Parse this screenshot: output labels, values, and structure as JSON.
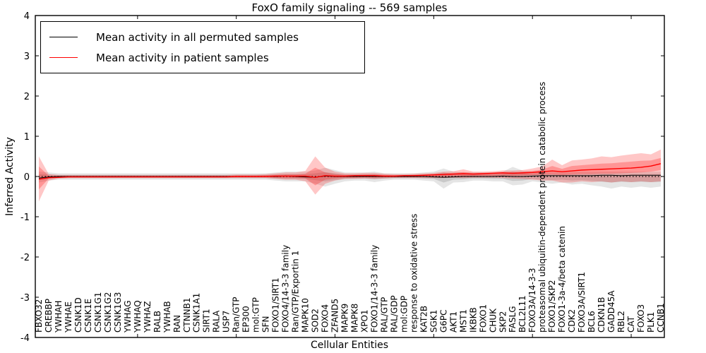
{
  "figure": {
    "background": "#ffffff",
    "spine_color": "#000000",
    "zero_line": {
      "style": "dashed",
      "color": "#000000",
      "value": 0
    }
  },
  "chart_data": {
    "type": "line",
    "title": "FoxO family signaling -- 569 samples",
    "xlabel": "Cellular Entities",
    "ylabel": "Inferred Activity",
    "ylim": [
      -4,
      4
    ],
    "yticks": [
      -4,
      -3,
      -2,
      -1,
      0,
      1,
      2,
      3,
      4
    ],
    "xtick_every": 10,
    "grid": false,
    "legend_position": "upper left",
    "categories": [
      "FBXO32",
      "CREBBP",
      "YWHAH",
      "YWHAE",
      "CSNK1D",
      "CSNK1E",
      "CSNK1G1",
      "CSNK1G2",
      "CSNK1G3",
      "YWHAG",
      "YWHAQ",
      "YWHAZ",
      "RALB",
      "YWHAB",
      "RAN",
      "CTNNB1",
      "CSNK1A1",
      "SIRT1",
      "RALA",
      "USP7",
      "Ran/GTP",
      "EP300",
      "mol:GTP",
      "SFN",
      "FOXO1/SIRT1",
      "FOXO4/14-3-3 family",
      "Ran/GTP/Exportin 1",
      "MAPK10",
      "SOD2",
      "FOXO4",
      "ZFAND5",
      "MAPK9",
      "MAPK8",
      "XPO1",
      "FOXO1/14-3-3 family",
      "RAL/GTP",
      "RAL/GDP",
      "mol:GDP",
      "response to oxidative stress",
      "KAT2B",
      "SGK1",
      "G6PC",
      "AKT1",
      "MST1",
      "IKBKB",
      "FOXO1",
      "CHUK",
      "SKP2",
      "FASLG",
      "BCL2L11",
      "FOXO3A/14-3-3",
      "proteasomal ubiquitin-dependent protein catabolic process",
      "FOXO1/SKP2",
      "FOXO1-3a-4/beta catenin",
      "CDK2",
      "FOXO3A/SIRT1",
      "BCL6",
      "CDKN1B",
      "GADD45A",
      "RBL2",
      "CAT",
      "FOXO3",
      "PLK1",
      "CCNB1"
    ],
    "series": [
      {
        "name": "Mean activity in all permuted samples",
        "color": "#000000",
        "values": [
          -0.04,
          -0.01,
          0,
          0,
          0,
          0,
          0,
          0,
          0,
          0,
          0,
          0,
          0,
          0,
          0,
          0,
          0,
          0,
          0,
          0,
          0,
          0,
          0,
          0,
          0,
          0.01,
          0,
          -0.01,
          -0.02,
          0.01,
          0,
          0,
          0,
          0,
          0,
          0,
          0,
          0,
          0,
          0,
          -0.01,
          -0.02,
          -0.01,
          0,
          0,
          0,
          0,
          0.01,
          0,
          0,
          0.01,
          0.02,
          0.02,
          0.02,
          0.02,
          0.02,
          0.02,
          0.03,
          0.03,
          0.02,
          0.03,
          0.03,
          0.03,
          0.03
        ]
      },
      {
        "name": "Mean activity in patient samples",
        "color": "#ff0000",
        "values": [
          -0.07,
          -0.03,
          -0.02,
          -0.01,
          -0.01,
          -0.01,
          -0.01,
          -0.01,
          -0.01,
          -0.01,
          -0.01,
          -0.01,
          -0.01,
          -0.01,
          -0.01,
          -0.01,
          -0.01,
          -0.01,
          -0.01,
          -0.01,
          0,
          0,
          0,
          0,
          0.01,
          0.01,
          0.01,
          0.01,
          -0.02,
          0.02,
          0.01,
          0.01,
          0.02,
          0.02,
          0.02,
          0.01,
          0.01,
          0.02,
          0.02,
          0.03,
          0.04,
          0.05,
          0.06,
          0.07,
          0.06,
          0.07,
          0.08,
          0.09,
          0.08,
          0.09,
          0.1,
          0.12,
          0.14,
          0.12,
          0.14,
          0.16,
          0.17,
          0.18,
          0.19,
          0.2,
          0.21,
          0.23,
          0.26,
          0.32
        ]
      }
    ],
    "bands": [
      {
        "name": "permuted-range-outer",
        "color": "#000000",
        "opacity": 0.1,
        "upper": [
          0.12,
          0.1,
          0.08,
          0.08,
          0.08,
          0.08,
          0.08,
          0.08,
          0.08,
          0.08,
          0.08,
          0.08,
          0.08,
          0.08,
          0.08,
          0.08,
          0.08,
          0.08,
          0.08,
          0.08,
          0.08,
          0.08,
          0.08,
          0.08,
          0.1,
          0.12,
          0.12,
          0.12,
          0.15,
          0.22,
          0.16,
          0.1,
          0.1,
          0.1,
          0.12,
          0.08,
          0.08,
          0.08,
          0.08,
          0.1,
          0.12,
          0.2,
          0.12,
          0.1,
          0.1,
          0.1,
          0.1,
          0.12,
          0.24,
          0.15,
          0.12,
          0.15,
          0.12,
          0.12,
          0.12,
          0.12,
          0.12,
          0.12,
          0.12,
          0.12,
          0.12,
          0.12,
          0.12,
          0.12
        ],
        "lower": [
          -0.15,
          -0.1,
          -0.08,
          -0.08,
          -0.08,
          -0.08,
          -0.08,
          -0.08,
          -0.08,
          -0.08,
          -0.08,
          -0.08,
          -0.08,
          -0.08,
          -0.08,
          -0.08,
          -0.08,
          -0.08,
          -0.08,
          -0.08,
          -0.08,
          -0.08,
          -0.08,
          -0.08,
          -0.1,
          -0.12,
          -0.12,
          -0.12,
          -0.18,
          -0.25,
          -0.18,
          -0.12,
          -0.1,
          -0.1,
          -0.14,
          -0.1,
          -0.08,
          -0.08,
          -0.08,
          -0.1,
          -0.12,
          -0.3,
          -0.15,
          -0.14,
          -0.1,
          -0.1,
          -0.12,
          -0.12,
          -0.22,
          -0.2,
          -0.12,
          -0.15,
          -0.18,
          -0.15,
          -0.2,
          -0.18,
          -0.22,
          -0.25,
          -0.3,
          -0.25,
          -0.28,
          -0.25,
          -0.28,
          -0.25
        ]
      },
      {
        "name": "permuted-range-inner",
        "color": "#000000",
        "opacity": 0.12,
        "upper": [
          0.06,
          0.05,
          0.04,
          0.04,
          0.04,
          0.04,
          0.04,
          0.04,
          0.04,
          0.04,
          0.04,
          0.04,
          0.04,
          0.04,
          0.04,
          0.04,
          0.04,
          0.04,
          0.04,
          0.04,
          0.04,
          0.04,
          0.04,
          0.04,
          0.05,
          0.06,
          0.06,
          0.06,
          0.08,
          0.11,
          0.08,
          0.05,
          0.05,
          0.05,
          0.06,
          0.04,
          0.04,
          0.04,
          0.04,
          0.05,
          0.06,
          0.1,
          0.06,
          0.05,
          0.05,
          0.05,
          0.05,
          0.06,
          0.12,
          0.08,
          0.06,
          0.08,
          0.06,
          0.06,
          0.06,
          0.06,
          0.06,
          0.06,
          0.06,
          0.06,
          0.06,
          0.06,
          0.06,
          0.06
        ],
        "lower": [
          -0.08,
          -0.05,
          -0.04,
          -0.04,
          -0.04,
          -0.04,
          -0.04,
          -0.04,
          -0.04,
          -0.04,
          -0.04,
          -0.04,
          -0.04,
          -0.04,
          -0.04,
          -0.04,
          -0.04,
          -0.04,
          -0.04,
          -0.04,
          -0.04,
          -0.04,
          -0.04,
          -0.04,
          -0.05,
          -0.06,
          -0.06,
          -0.06,
          -0.09,
          -0.12,
          -0.09,
          -0.06,
          -0.05,
          -0.05,
          -0.07,
          -0.05,
          -0.04,
          -0.04,
          -0.04,
          -0.05,
          -0.06,
          -0.15,
          -0.08,
          -0.07,
          -0.05,
          -0.05,
          -0.06,
          -0.06,
          -0.11,
          -0.1,
          -0.06,
          -0.08,
          -0.09,
          -0.08,
          -0.1,
          -0.09,
          -0.11,
          -0.13,
          -0.15,
          -0.13,
          -0.14,
          -0.13,
          -0.14,
          -0.13
        ]
      },
      {
        "name": "patient-range-outer",
        "color": "#ff0000",
        "opacity": 0.22,
        "upper": [
          0.5,
          0.06,
          0.04,
          0.04,
          0.04,
          0.04,
          0.04,
          0.04,
          0.04,
          0.04,
          0.04,
          0.04,
          0.04,
          0.04,
          0.04,
          0.04,
          0.04,
          0.04,
          0.04,
          0.04,
          0.05,
          0.05,
          0.05,
          0.06,
          0.08,
          0.1,
          0.1,
          0.14,
          0.5,
          0.22,
          0.12,
          0.08,
          0.08,
          0.09,
          0.09,
          0.07,
          0.06,
          0.06,
          0.07,
          0.08,
          0.09,
          0.12,
          0.13,
          0.18,
          0.12,
          0.12,
          0.13,
          0.15,
          0.15,
          0.16,
          0.2,
          0.25,
          0.42,
          0.28,
          0.4,
          0.42,
          0.45,
          0.5,
          0.48,
          0.52,
          0.55,
          0.58,
          0.55,
          0.67
        ],
        "lower": [
          -0.62,
          -0.1,
          -0.05,
          -0.04,
          -0.04,
          -0.04,
          -0.04,
          -0.04,
          -0.04,
          -0.04,
          -0.04,
          -0.04,
          -0.04,
          -0.04,
          -0.04,
          -0.04,
          -0.04,
          -0.04,
          -0.04,
          -0.04,
          -0.04,
          -0.04,
          -0.04,
          -0.04,
          -0.06,
          -0.08,
          -0.08,
          -0.12,
          -0.45,
          -0.18,
          -0.1,
          -0.06,
          -0.06,
          -0.05,
          -0.06,
          -0.05,
          -0.04,
          -0.04,
          -0.04,
          -0.04,
          -0.04,
          -0.04,
          -0.03,
          -0.04,
          -0.03,
          -0.03,
          -0.03,
          -0.04,
          -0.05,
          -0.06,
          -0.08,
          -0.1,
          -0.1,
          -0.15,
          -0.15,
          -0.12,
          -0.14,
          -0.12,
          -0.15,
          -0.12,
          -0.14,
          -0.12,
          -0.14,
          -0.12
        ]
      },
      {
        "name": "patient-range-inner",
        "color": "#ff0000",
        "opacity": 0.25,
        "upper": [
          0.25,
          0.02,
          0.01,
          0.01,
          0.01,
          0.01,
          0.01,
          0.01,
          0.01,
          0.01,
          0.01,
          0.01,
          0.01,
          0.01,
          0.01,
          0.01,
          0.01,
          0.01,
          0.01,
          0.01,
          0.02,
          0.02,
          0.02,
          0.03,
          0.04,
          0.05,
          0.05,
          0.07,
          0.22,
          0.1,
          0.06,
          0.04,
          0.04,
          0.05,
          0.05,
          0.04,
          0.03,
          0.03,
          0.04,
          0.05,
          0.06,
          0.08,
          0.09,
          0.11,
          0.09,
          0.09,
          0.1,
          0.11,
          0.11,
          0.12,
          0.14,
          0.17,
          0.26,
          0.19,
          0.26,
          0.28,
          0.3,
          0.32,
          0.33,
          0.35,
          0.37,
          0.39,
          0.4,
          0.46
        ],
        "lower": [
          -0.32,
          -0.05,
          -0.03,
          -0.02,
          -0.02,
          -0.02,
          -0.02,
          -0.02,
          -0.02,
          -0.02,
          -0.02,
          -0.02,
          -0.02,
          -0.02,
          -0.02,
          -0.02,
          -0.02,
          -0.02,
          -0.02,
          -0.02,
          -0.02,
          -0.02,
          -0.02,
          -0.02,
          -0.03,
          -0.04,
          -0.04,
          -0.05,
          -0.22,
          -0.08,
          -0.05,
          -0.03,
          -0.03,
          -0.02,
          -0.03,
          -0.02,
          -0.02,
          -0.01,
          -0.01,
          -0.01,
          0.0,
          0.0,
          0.01,
          0.01,
          0.01,
          0.02,
          0.02,
          0.03,
          0.02,
          0.03,
          0.04,
          0.05,
          0.05,
          0.04,
          0.05,
          0.06,
          0.06,
          0.07,
          0.07,
          0.08,
          0.09,
          0.1,
          0.12,
          0.16
        ]
      }
    ]
  }
}
